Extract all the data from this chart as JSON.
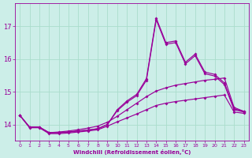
{
  "xlabel": "Windchill (Refroidissement éolien,°C)",
  "bg_color": "#cceee8",
  "grid_color": "#aaddcc",
  "line_color": "#990099",
  "xlim": [
    -0.5,
    23.5
  ],
  "ylim": [
    13.5,
    17.7
  ],
  "yticks": [
    14,
    15,
    16,
    17
  ],
  "xticks": [
    0,
    1,
    2,
    3,
    4,
    5,
    6,
    7,
    8,
    9,
    10,
    11,
    12,
    13,
    14,
    15,
    16,
    17,
    18,
    19,
    20,
    21,
    22,
    23
  ],
  "line1_y": [
    14.28,
    13.92,
    13.92,
    13.75,
    13.75,
    13.77,
    13.8,
    13.83,
    13.87,
    14.0,
    14.42,
    14.68,
    14.88,
    15.35,
    17.2,
    16.45,
    16.5,
    15.85,
    16.1,
    15.55,
    15.48,
    15.22,
    14.45,
    14.38
  ],
  "line2_y": [
    14.28,
    13.92,
    13.92,
    13.75,
    13.75,
    13.77,
    13.8,
    13.83,
    13.87,
    14.0,
    14.45,
    14.72,
    14.92,
    15.4,
    17.25,
    16.5,
    16.55,
    15.9,
    16.15,
    15.6,
    15.53,
    15.27,
    14.48,
    14.4
  ],
  "line3_y": [
    14.28,
    13.92,
    13.92,
    13.75,
    13.77,
    13.8,
    13.84,
    13.89,
    13.95,
    14.07,
    14.25,
    14.45,
    14.65,
    14.85,
    15.02,
    15.12,
    15.2,
    15.25,
    15.3,
    15.35,
    15.38,
    15.42,
    14.52,
    14.4
  ],
  "line4_y": [
    14.28,
    13.9,
    13.9,
    13.72,
    13.72,
    13.74,
    13.77,
    13.8,
    13.84,
    13.95,
    14.08,
    14.2,
    14.32,
    14.45,
    14.58,
    14.65,
    14.7,
    14.74,
    14.78,
    14.82,
    14.86,
    14.9,
    14.38,
    14.34
  ]
}
